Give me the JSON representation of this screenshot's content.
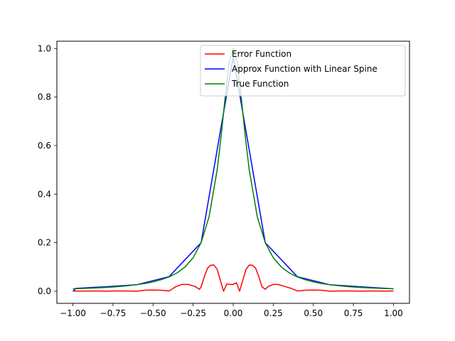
{
  "chart_data": {
    "type": "line",
    "title": "",
    "xlabel": "",
    "ylabel": "",
    "xlim": [
      -1.1,
      1.1
    ],
    "ylim": [
      -0.05,
      1.03
    ],
    "xticks": [
      -1.0,
      -0.75,
      -0.5,
      -0.25,
      0.0,
      0.25,
      0.5,
      0.75,
      1.0
    ],
    "xtick_labels": [
      "−1.00",
      "−0.75",
      "−0.50",
      "−0.25",
      "0.00",
      "0.25",
      "0.50",
      "0.75",
      "1.00"
    ],
    "yticks": [
      0.0,
      0.2,
      0.4,
      0.6,
      0.8,
      1.0
    ],
    "ytick_labels": [
      "0.0",
      "0.2",
      "0.4",
      "0.6",
      "0.8",
      "1.0"
    ],
    "grid": false,
    "legend_position": "top-right",
    "series": [
      {
        "name": "Error Function",
        "color": "#ff0000",
        "x": [
          -1.0,
          -0.95,
          -0.9,
          -0.85,
          -0.8,
          -0.75,
          -0.7,
          -0.65,
          -0.6,
          -0.55,
          -0.5,
          -0.45,
          -0.4,
          -0.36,
          -0.32,
          -0.28,
          -0.24,
          -0.21,
          -0.2,
          -0.18,
          -0.16,
          -0.14,
          -0.12,
          -0.1,
          -0.08,
          -0.06,
          -0.04,
          -0.02,
          0.0,
          0.02,
          0.04,
          0.06,
          0.08,
          0.1,
          0.12,
          0.14,
          0.16,
          0.18,
          0.2,
          0.22,
          0.25,
          0.28,
          0.32,
          0.36,
          0.4,
          0.45,
          0.5,
          0.55,
          0.6,
          0.65,
          0.7,
          0.75,
          0.8,
          0.85,
          0.9,
          0.95,
          1.0
        ],
        "y": [
          0.001,
          0.0005,
          0.001,
          0.001,
          0.0003,
          0.001,
          0.001,
          0.0008,
          0.0002,
          0.004,
          0.005,
          0.004,
          0.001,
          0.018,
          0.028,
          0.028,
          0.02,
          0.008,
          0.018,
          0.06,
          0.095,
          0.107,
          0.108,
          0.09,
          0.045,
          0.0,
          0.03,
          0.028,
          0.028,
          0.035,
          0.0,
          0.045,
          0.09,
          0.108,
          0.107,
          0.095,
          0.06,
          0.018,
          0.008,
          0.02,
          0.028,
          0.028,
          0.02,
          0.012,
          0.001,
          0.004,
          0.005,
          0.004,
          0.0002,
          0.0008,
          0.001,
          0.001,
          0.0003,
          0.001,
          0.001,
          0.0005,
          0.001
        ]
      },
      {
        "name": "Approx Function with Linear Spine",
        "color": "#0000ff",
        "x": [
          -1.0,
          -0.98,
          -0.8,
          -0.6,
          -0.4,
          -0.2,
          0.0,
          0.2,
          0.4,
          0.6,
          0.8,
          1.0
        ],
        "y": [
          0.0,
          0.012,
          0.018,
          0.027,
          0.06,
          0.2,
          0.965,
          0.2,
          0.06,
          0.027,
          0.018,
          0.01
        ]
      },
      {
        "name": "True Function",
        "color": "#008000",
        "x": [
          -1.0,
          -0.95,
          -0.9,
          -0.85,
          -0.8,
          -0.75,
          -0.7,
          -0.65,
          -0.6,
          -0.55,
          -0.5,
          -0.45,
          -0.4,
          -0.35,
          -0.3,
          -0.25,
          -0.2,
          -0.15,
          -0.1,
          -0.075,
          -0.05,
          -0.025,
          0.0,
          0.025,
          0.05,
          0.075,
          0.1,
          0.15,
          0.2,
          0.25,
          0.3,
          0.35,
          0.4,
          0.45,
          0.5,
          0.55,
          0.6,
          0.65,
          0.7,
          0.75,
          0.8,
          0.85,
          0.9,
          0.95,
          1.0
        ],
        "y": [
          0.0099,
          0.011,
          0.0122,
          0.0136,
          0.0154,
          0.0175,
          0.02,
          0.0232,
          0.027,
          0.0319,
          0.0385,
          0.0471,
          0.0588,
          0.0755,
          0.1,
          0.1379,
          0.2,
          0.3077,
          0.5,
          0.64,
          0.8,
          0.9412,
          1.0,
          0.9412,
          0.8,
          0.64,
          0.5,
          0.3077,
          0.2,
          0.1379,
          0.1,
          0.0755,
          0.0588,
          0.0471,
          0.0385,
          0.0319,
          0.027,
          0.0232,
          0.02,
          0.0175,
          0.0154,
          0.0136,
          0.0122,
          0.011,
          0.0099
        ]
      }
    ]
  }
}
